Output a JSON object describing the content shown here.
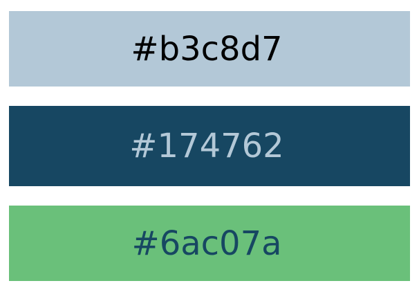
{
  "swatches": [
    {
      "label": "#b3c8d7",
      "background": "#b3c8d7",
      "text_color": "#000000"
    },
    {
      "label": "#174762",
      "background": "#174762",
      "text_color": "#b3c8d7"
    },
    {
      "label": "#6ac07a",
      "background": "#6ac07a",
      "text_color": "#174762"
    }
  ]
}
